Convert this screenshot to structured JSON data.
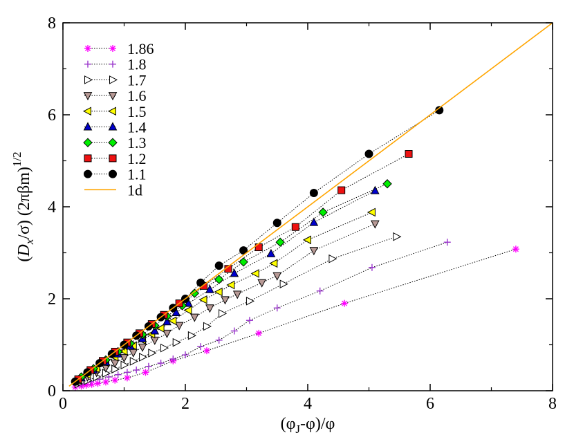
{
  "chart_data": {
    "type": "line",
    "xlabel": "(φ_J-φ)/φ",
    "ylabel": "(D_x/σ) (2πβm)^1/2",
    "xlim": [
      0,
      8
    ],
    "ylim": [
      0,
      8
    ],
    "xticks": [
      0,
      2,
      4,
      6,
      8
    ],
    "yticks": [
      0,
      2,
      4,
      6,
      8
    ],
    "legend_position": "top-left",
    "series": [
      {
        "name": "1.86",
        "color": "#ff00ff",
        "marker": "asterisk",
        "line": "dotted-black",
        "x": [
          0.2,
          0.3,
          0.38,
          0.47,
          0.57,
          0.7,
          0.85,
          1.05,
          1.35,
          1.8,
          2.35,
          3.2,
          4.6,
          7.4
        ],
        "y": [
          0.08,
          0.1,
          0.12,
          0.14,
          0.16,
          0.19,
          0.23,
          0.28,
          0.4,
          0.65,
          0.87,
          1.25,
          1.9,
          3.08
        ]
      },
      {
        "name": "1.8",
        "color": "#9933cc",
        "marker": "plus",
        "line": "dotted-black",
        "x": [
          0.3,
          0.45,
          0.6,
          0.75,
          0.9,
          1.05,
          1.2,
          1.4,
          1.6,
          1.8,
          2.0,
          2.25,
          2.55,
          2.8,
          3.05,
          3.5,
          4.2,
          5.05,
          6.28
        ],
        "y": [
          0.15,
          0.2,
          0.25,
          0.3,
          0.35,
          0.4,
          0.45,
          0.53,
          0.6,
          0.69,
          0.78,
          0.96,
          1.1,
          1.3,
          1.53,
          1.8,
          2.17,
          2.68,
          3.23
        ]
      },
      {
        "name": "1.7",
        "color": "#ffffff",
        "marker": "triangle-right",
        "line": "dotted-black",
        "x": [
          0.25,
          0.4,
          0.55,
          0.7,
          0.85,
          1.0,
          1.15,
          1.3,
          1.45,
          1.65,
          1.85,
          2.1,
          2.35,
          2.6,
          3.05,
          3.6,
          4.4,
          5.45
        ],
        "y": [
          0.15,
          0.22,
          0.3,
          0.38,
          0.47,
          0.56,
          0.64,
          0.73,
          0.82,
          0.93,
          1.05,
          1.2,
          1.4,
          1.68,
          1.95,
          2.32,
          2.87,
          3.35
        ]
      },
      {
        "name": "1.6",
        "color": "#b89a96",
        "marker": "triangle-down",
        "line": "dotted-black",
        "x": [
          0.25,
          0.4,
          0.55,
          0.7,
          0.85,
          1.0,
          1.15,
          1.3,
          1.5,
          1.7,
          1.9,
          2.15,
          2.4,
          2.65,
          2.85,
          3.25,
          3.5,
          4.1,
          5.1
        ],
        "y": [
          0.2,
          0.3,
          0.4,
          0.5,
          0.6,
          0.72,
          0.83,
          0.95,
          1.1,
          1.25,
          1.42,
          1.6,
          1.8,
          1.98,
          2.1,
          2.35,
          2.5,
          3.05,
          3.63
        ]
      },
      {
        "name": "1.5",
        "color": "#ffff00",
        "marker": "triangle-left",
        "line": "dotted-black",
        "x": [
          0.25,
          0.4,
          0.55,
          0.7,
          0.85,
          1.0,
          1.15,
          1.3,
          1.45,
          1.6,
          1.8,
          2.05,
          2.3,
          2.55,
          2.75,
          3.15,
          3.45,
          4.0,
          5.05
        ],
        "y": [
          0.23,
          0.35,
          0.48,
          0.61,
          0.73,
          0.86,
          0.98,
          1.1,
          1.23,
          1.36,
          1.52,
          1.75,
          1.98,
          2.15,
          2.3,
          2.55,
          2.77,
          3.28,
          3.88
        ]
      },
      {
        "name": "1.4",
        "color": "#0000cc",
        "marker": "triangle-up",
        "line": "dotted-black",
        "x": [
          0.3,
          0.5,
          0.7,
          0.9,
          1.1,
          1.3,
          1.5,
          1.7,
          1.85,
          2.05,
          2.4,
          2.8,
          3.4,
          4.1,
          5.1
        ],
        "y": [
          0.28,
          0.45,
          0.62,
          0.8,
          0.97,
          1.13,
          1.3,
          1.5,
          1.7,
          1.9,
          2.2,
          2.55,
          2.98,
          3.66,
          4.35
        ]
      },
      {
        "name": "1.3",
        "color": "#00ee00",
        "marker": "diamond",
        "line": "dotted-black",
        "x": [
          0.3,
          0.5,
          0.7,
          0.9,
          1.1,
          1.3,
          1.5,
          1.7,
          1.95,
          2.15,
          2.55,
          2.95,
          3.55,
          4.25,
          5.3
        ],
        "y": [
          0.3,
          0.48,
          0.67,
          0.85,
          1.03,
          1.22,
          1.42,
          1.62,
          1.85,
          2.12,
          2.42,
          2.8,
          3.23,
          3.88,
          4.5
        ]
      },
      {
        "name": "1.2",
        "color": "#ee1111",
        "marker": "square",
        "line": "dotted-black",
        "x": [
          0.25,
          0.45,
          0.65,
          0.85,
          1.05,
          1.25,
          1.45,
          1.65,
          1.9,
          2.3,
          2.7,
          3.2,
          3.8,
          4.55,
          5.65
        ],
        "y": [
          0.25,
          0.45,
          0.65,
          0.85,
          1.05,
          1.25,
          1.45,
          1.65,
          1.9,
          2.28,
          2.65,
          3.12,
          3.56,
          4.36,
          5.15
        ]
      },
      {
        "name": "1.1",
        "color": "#000000",
        "marker": "circle",
        "line": "dotted-black",
        "x": [
          0.2,
          0.4,
          0.6,
          0.8,
          1.0,
          1.2,
          1.4,
          1.6,
          1.8,
          2.0,
          2.25,
          2.55,
          2.95,
          3.5,
          4.1,
          5.0,
          6.15
        ],
        "y": [
          0.2,
          0.4,
          0.6,
          0.8,
          1.0,
          1.2,
          1.4,
          1.6,
          1.8,
          2.0,
          2.35,
          2.72,
          3.05,
          3.65,
          4.3,
          5.15,
          6.1
        ]
      },
      {
        "name": "1d",
        "color": "#ffa500",
        "marker": "none",
        "line": "solid",
        "x": [
          0.1,
          8
        ],
        "y": [
          0.1,
          8
        ]
      }
    ]
  }
}
